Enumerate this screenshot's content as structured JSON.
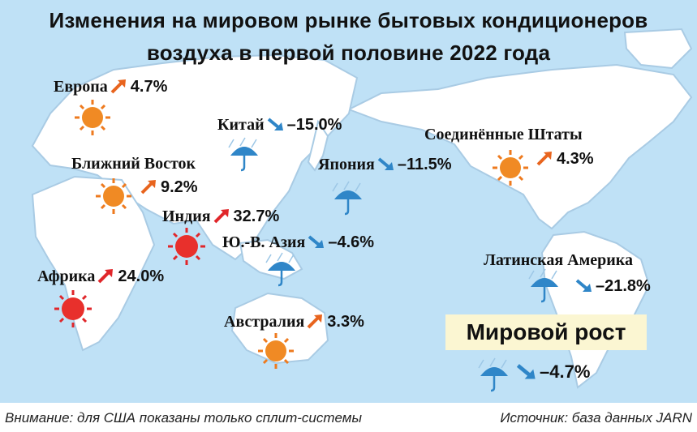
{
  "chart_data": {
    "type": "map",
    "title_lines": [
      "Изменения на мировом рынке бытовых кондиционеров",
      "воздуха  в первой половине 2022 года"
    ],
    "unit": "%",
    "regions": [
      {
        "name": "Европа",
        "value": 4.7,
        "display": "4.7%",
        "trend": "up",
        "icon": "sun-icon"
      },
      {
        "name": "Китай",
        "value": -15.0,
        "display": "–15.0%",
        "trend": "down",
        "icon": "umbrella-rain-icon"
      },
      {
        "name": "Соединённые Штаты",
        "value": 4.3,
        "display": "4.3%",
        "trend": "up",
        "icon": "sun-icon"
      },
      {
        "name": "Ближний Восток",
        "value": 9.2,
        "display": "9.2%",
        "trend": "up",
        "icon": "sun-icon"
      },
      {
        "name": "Япония",
        "value": -11.5,
        "display": "–11.5%",
        "trend": "down",
        "icon": "umbrella-rain-icon"
      },
      {
        "name": "Индия",
        "value": 32.7,
        "display": "32.7%",
        "trend": "up",
        "icon": "hot-sun-icon"
      },
      {
        "name": "Ю.-В. Азия",
        "value": -4.6,
        "display": "–4.6%",
        "trend": "down",
        "icon": "umbrella-rain-icon"
      },
      {
        "name": "Латинская Америка",
        "value": -21.8,
        "display": "–21.8%",
        "trend": "down",
        "icon": "umbrella-rain-icon"
      },
      {
        "name": "Африка",
        "value": 24.0,
        "display": "24.0%",
        "trend": "up",
        "icon": "hot-sun-icon"
      },
      {
        "name": "Австралия",
        "value": 3.3,
        "display": "3.3%",
        "trend": "up",
        "icon": "sun-icon"
      }
    ],
    "world": {
      "name": "Мировой рост",
      "value": -4.7,
      "display": "–4.7%",
      "trend": "down",
      "icon": "umbrella-rain-icon"
    }
  },
  "colors": {
    "ocean": "#bfe1f6",
    "land": "#ffffff",
    "growth": "#f08a24",
    "strong_growth": "#e8302c",
    "decline": "#2f86c8",
    "world_box": "#fbf6d2"
  },
  "footer": {
    "note": "Внимание: для США показаны только сплит-системы",
    "source": "Источник: база данных JARN"
  }
}
